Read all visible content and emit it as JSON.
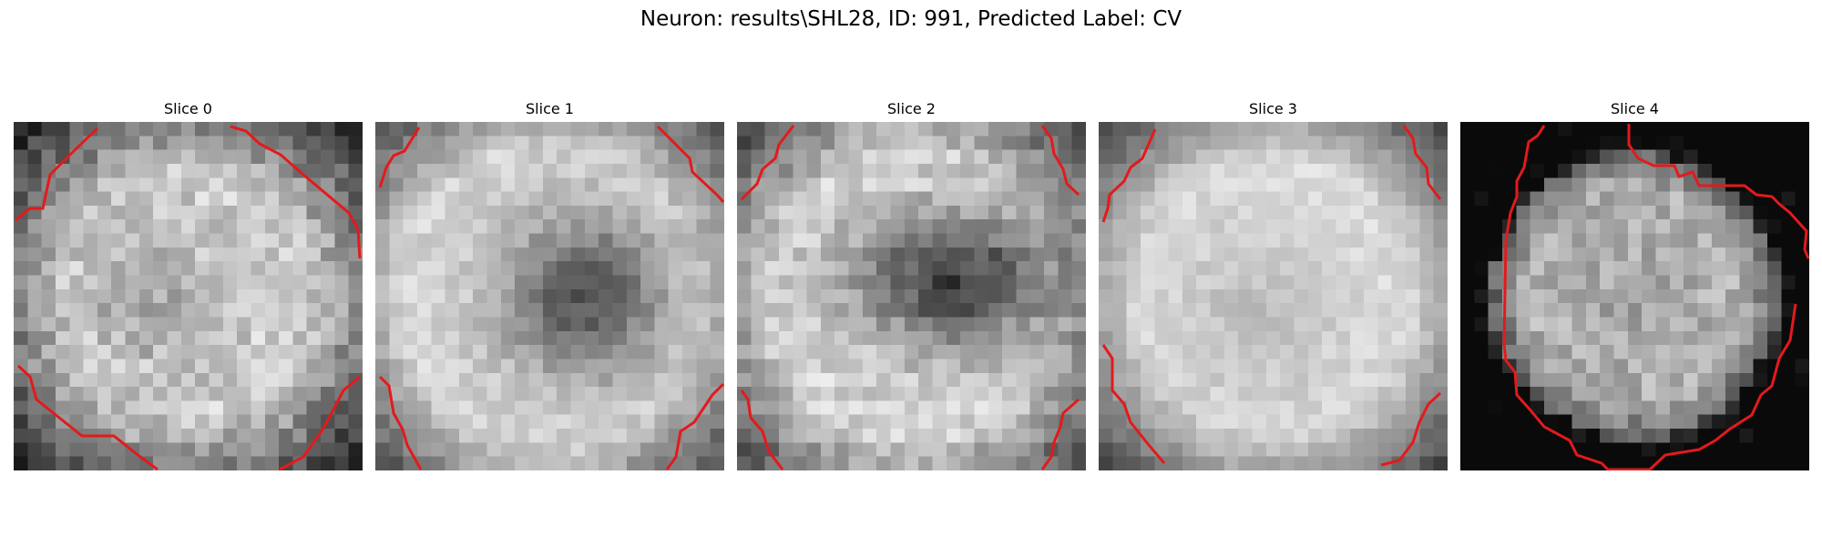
{
  "figure": {
    "title": "Neuron: results\\SHL28, ID: 991, Predicted Label: CV",
    "contour_color": "#e31a1c",
    "colormap": "gray"
  },
  "slices": [
    {
      "title": "Slice 0"
    },
    {
      "title": "Slice 1"
    },
    {
      "title": "Slice 2"
    },
    {
      "title": "Slice 3"
    },
    {
      "title": "Slice 4"
    }
  ]
}
